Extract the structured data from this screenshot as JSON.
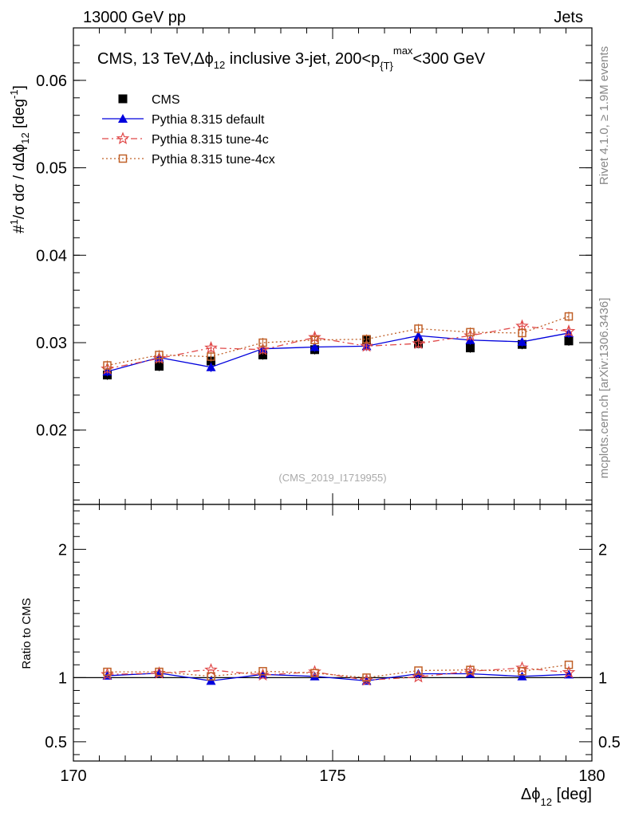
{
  "header": {
    "left": "13000 GeV pp",
    "right": "Jets"
  },
  "side": {
    "rivet": "Rivet 4.1.0, ≥ 1.9M events",
    "mcplots": "mcplots.cern.ch [arXiv:1306.3436]"
  },
  "plot_title": "CMS, 13 TeV,Δϕ₁₂ inclusive 3-jet, 200<p_{T}^{max}<300 GeV",
  "watermark": "(CMS_2019_I1719955)",
  "chart_data": [
    {
      "type": "line",
      "panel": "main",
      "ylabel": "1/σ dσ/dΔϕ₁₂ [deg⁻¹]",
      "ylim": [
        0.0115,
        0.066
      ],
      "yticks": [
        0.02,
        0.03,
        0.04,
        0.05,
        0.06
      ],
      "ytick_labels": [
        "0.02",
        "0.03",
        "0.04",
        "0.05",
        "0.06"
      ],
      "legend_position": "top-left",
      "x": [
        170.5,
        171.5,
        172.5,
        173.5,
        174.5,
        175.5,
        176.5,
        177.5,
        178.5,
        179.4
      ],
      "series": [
        {
          "name": "CMS",
          "color": "#000000",
          "marker": "square-filled",
          "values": [
            0.0263,
            0.0273,
            0.0279,
            0.0286,
            0.0292,
            0.0303,
            0.0299,
            0.0294,
            0.0298,
            0.0302
          ]
        },
        {
          "name": "Pythia 8.315 default",
          "color": "#0000dd",
          "marker": "triangle-filled",
          "line": "solid",
          "values": [
            0.0267,
            0.0283,
            0.0272,
            0.0293,
            0.0295,
            0.0296,
            0.0308,
            0.0303,
            0.0301,
            0.0311
          ]
        },
        {
          "name": "Pythia 8.315 tune-4c",
          "color": "#e04848",
          "marker": "star-open",
          "line": "dashdot",
          "values": [
            0.027,
            0.0282,
            0.0294,
            0.0292,
            0.0306,
            0.0296,
            0.0299,
            0.0308,
            0.0319,
            0.0313
          ]
        },
        {
          "name": "Pythia 8.315 tune-4cx",
          "color": "#c06028",
          "marker": "square-open",
          "line": "dotted",
          "values": [
            0.0274,
            0.0286,
            0.0284,
            0.03,
            0.0303,
            0.0304,
            0.0316,
            0.0312,
            0.0311,
            0.033
          ]
        }
      ]
    },
    {
      "type": "line",
      "panel": "ratio",
      "xlabel": "Δϕ₁₂ [deg]",
      "ylabel": "Ratio to CMS",
      "xlim": [
        170,
        180
      ],
      "xticks": [
        170,
        175,
        180
      ],
      "xtick_labels": [
        "170",
        "175",
        "180"
      ],
      "ylim": [
        0.35,
        2.35
      ],
      "yticks": [
        0.5,
        1,
        2
      ],
      "ytick_labels": [
        "0.5",
        "1",
        "2"
      ],
      "x": [
        170.5,
        171.5,
        172.5,
        173.5,
        174.5,
        175.5,
        176.5,
        177.5,
        178.5,
        179.4
      ],
      "series": [
        {
          "name": "Pythia 8.315 default",
          "color": "#0000dd",
          "values": [
            1.015,
            1.035,
            0.975,
            1.025,
            1.01,
            0.975,
            1.03,
            1.03,
            1.01,
            1.025
          ]
        },
        {
          "name": "Pythia 8.315 tune-4c",
          "color": "#e04848",
          "values": [
            1.025,
            1.035,
            1.06,
            1.02,
            1.045,
            0.98,
            1.005,
            1.05,
            1.075,
            1.04
          ]
        },
        {
          "name": "Pythia 8.315 tune-4cx",
          "color": "#c06028",
          "values": [
            1.045,
            1.045,
            1.01,
            1.05,
            1.035,
            1.0,
            1.055,
            1.06,
            1.05,
            1.1
          ]
        }
      ]
    }
  ]
}
